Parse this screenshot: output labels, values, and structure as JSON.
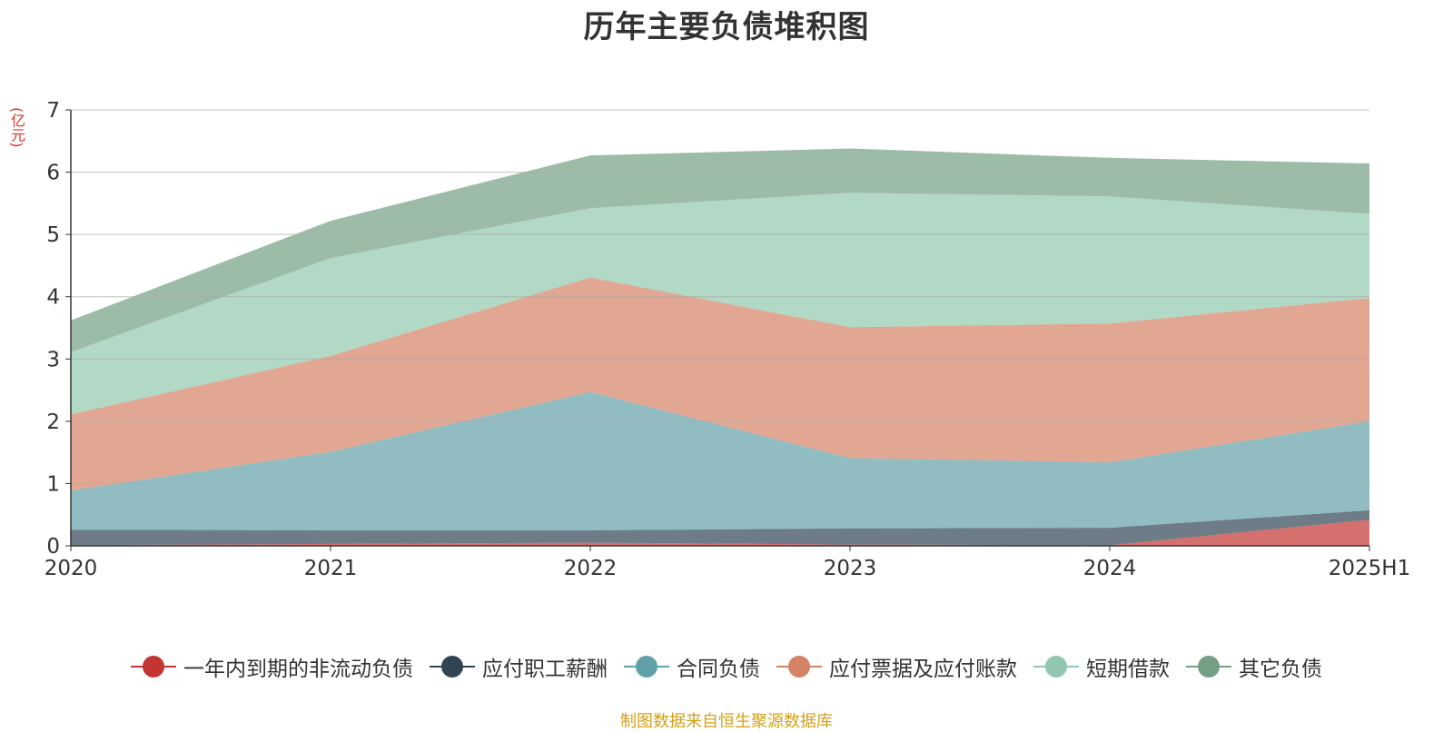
{
  "chart_data": {
    "type": "area",
    "stacked": true,
    "title": "历年主要负债堆积图",
    "unit_label": "(亿元)",
    "categories": [
      "2020",
      "2021",
      "2022",
      "2023",
      "2024",
      "2025H1"
    ],
    "ylim": [
      0,
      7
    ],
    "yticks": [
      "0",
      "1",
      "2",
      "3",
      "4",
      "5",
      "6",
      "7"
    ],
    "grid": true,
    "legend_position": "bottom",
    "series": [
      {
        "name": "一年内到期的非流动负债",
        "color": "#c23531",
        "values": [
          0.01,
          0.03,
          0.05,
          0.02,
          0.01,
          0.42
        ]
      },
      {
        "name": "应付职工薪酬",
        "color": "#2f4554",
        "values": [
          0.25,
          0.22,
          0.2,
          0.26,
          0.28,
          0.15
        ]
      },
      {
        "name": "合同负债",
        "color": "#61a0a8",
        "values": [
          0.63,
          1.26,
          2.22,
          1.13,
          1.05,
          1.43
        ]
      },
      {
        "name": "应付票据及应付账款",
        "color": "#d48265",
        "values": [
          1.22,
          1.54,
          1.84,
          2.1,
          2.23,
          1.98
        ]
      },
      {
        "name": "短期借款",
        "color": "#91c7ae",
        "values": [
          1.0,
          1.57,
          1.11,
          2.16,
          2.04,
          1.35
        ]
      },
      {
        "name": "其它负债",
        "color": "#749f83",
        "values": [
          0.51,
          0.6,
          0.85,
          0.71,
          0.62,
          0.81
        ]
      }
    ],
    "source_note": "制图数据来自恒生聚源数据库"
  }
}
